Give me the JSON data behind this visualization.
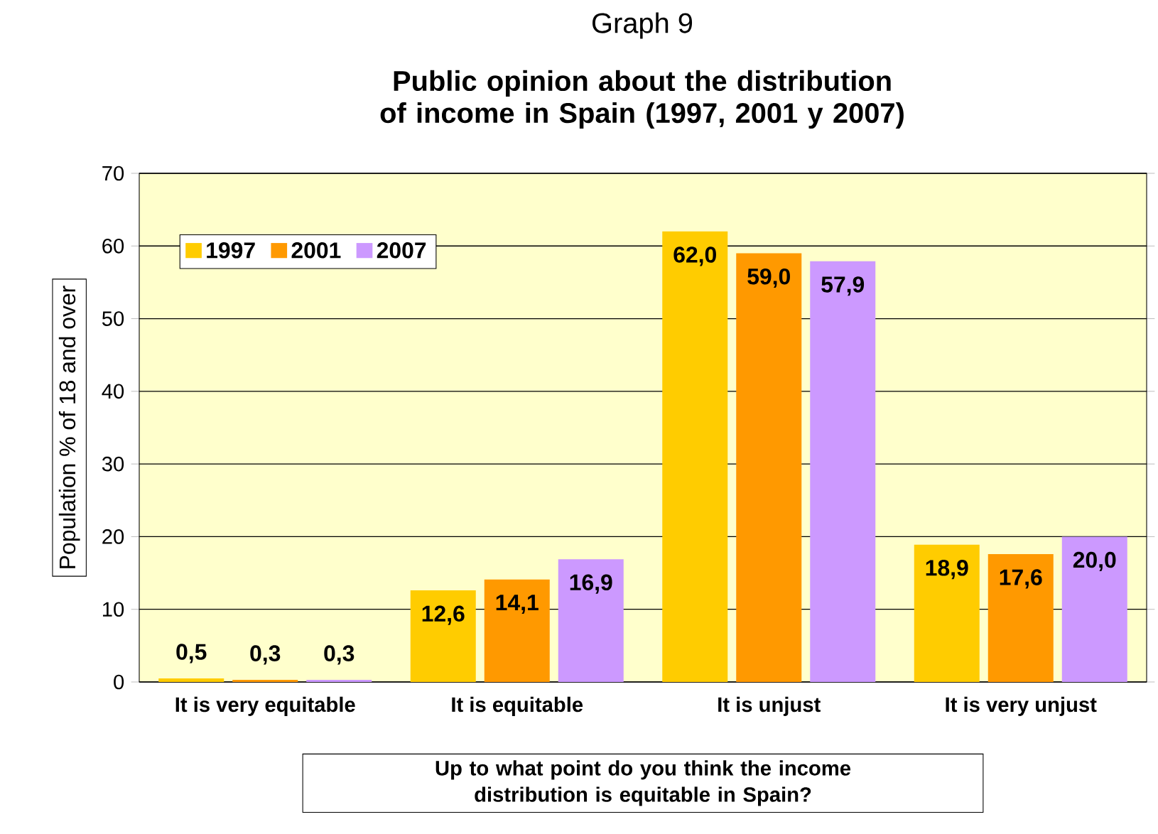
{
  "chart_data": {
    "type": "bar",
    "title": "Graph 9",
    "subtitle": "Public opinion about the distribution of income in Spain (1997, 2001 y 2007)",
    "xlabel": "Up to what point do you think the income distribution is equitable in Spain?",
    "ylabel": "Population % of 18 and over",
    "categories": [
      "It is very equitable",
      "It is equitable",
      "It is unjust",
      "It is very unjust"
    ],
    "series": [
      {
        "name": "1997",
        "color": "#ffcc00",
        "values": [
          0.5,
          12.6,
          62.0,
          18.9
        ],
        "value_labels": [
          "0,5",
          "12,6",
          "62,0",
          "18,9"
        ]
      },
      {
        "name": "2001",
        "color": "#ff9900",
        "values": [
          0.3,
          14.1,
          59.0,
          17.6
        ],
        "value_labels": [
          "0,3",
          "14,1",
          "59,0",
          "17,6"
        ]
      },
      {
        "name": "2007",
        "color": "#cc99ff",
        "values": [
          0.3,
          16.9,
          57.9,
          20.0
        ],
        "value_labels": [
          "0,3",
          "16,9",
          "57,9",
          "20,0"
        ]
      }
    ],
    "ylim": [
      0,
      70
    ],
    "yticks": [
      0,
      10,
      20,
      30,
      40,
      50,
      60,
      70
    ],
    "grid": "y",
    "legend": "top left"
  }
}
